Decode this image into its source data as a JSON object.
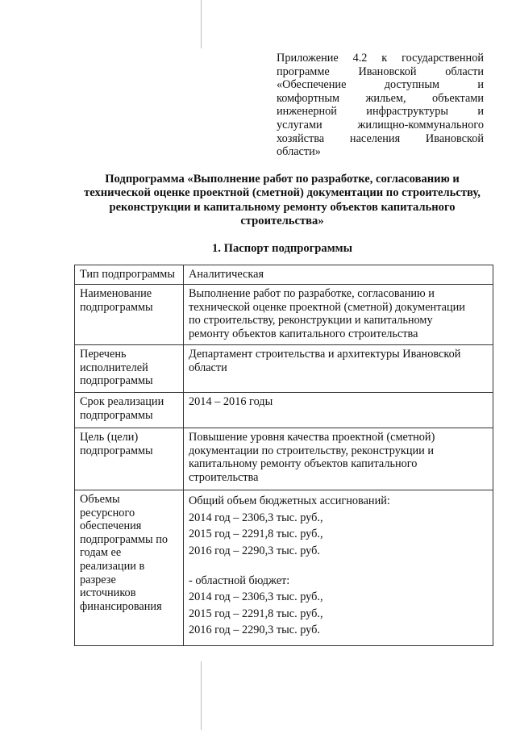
{
  "appendix": {
    "lines": [
      "Приложение 4.2 к государственной",
      "программе Ивановской области",
      "«Обеспечение доступным и",
      "комфортным жильем, объектами",
      "инженерной инфраструктуры и",
      "услугами жилищно-коммунального",
      "хозяйства населения Ивановской",
      "области»"
    ]
  },
  "title": {
    "lines": [
      "Подпрограмма «Выполнение работ по разработке, согласованию и",
      "технической оценке проектной (сметной) документации по строительству,",
      "реконструкции и капитальному ремонту объектов капитального",
      "строительства»"
    ]
  },
  "section_title": "1. Паспорт подпрограммы",
  "passport": {
    "rows": [
      {
        "label": [
          "Тип подпрограммы"
        ],
        "value": [
          "Аналитическая"
        ]
      },
      {
        "label": [
          "Наименование",
          "подпрограммы"
        ],
        "value": [
          "Выполнение работ по разработке, согласованию и",
          "технической оценке проектной (сметной) документации",
          "по строительству, реконструкции и капитальному",
          "ремонту объектов капитального строительства"
        ]
      },
      {
        "label": [
          "Перечень",
          "исполнителей",
          "подпрограммы"
        ],
        "value": [
          "Департамент строительства и архитектуры Ивановской",
          "области"
        ]
      },
      {
        "label": [
          "Срок реализации",
          "подпрограммы"
        ],
        "value": [
          "2014 – 2016 годы"
        ]
      },
      {
        "label": [
          "Цель (цели)",
          "подпрограммы"
        ],
        "value": [
          "Повышение уровня качества проектной (сметной)",
          "документации по строительству, реконструкции и",
          "капитальному ремонту объектов капитального",
          "строительства"
        ]
      },
      {
        "label": [
          "Объемы",
          "ресурсного",
          "обеспечения",
          "подпрограммы по",
          "годам ее",
          "реализации в",
          "разрезе",
          "источников",
          "финансирования"
        ],
        "value": [
          "Общий объем бюджетных ассигнований:",
          "2014 год – 2306,3 тыс. руб.,",
          "2015 год – 2291,8 тыс. руб.,",
          "2016 год – 2290,3 тыс. руб.",
          "",
          "- областной бюджет:",
          "2014 год – 2306,3 тыс. руб.,",
          "2015 год – 2291,8 тыс. руб.,",
          "2016 год – 2290,3 тыс. руб."
        ]
      }
    ]
  }
}
